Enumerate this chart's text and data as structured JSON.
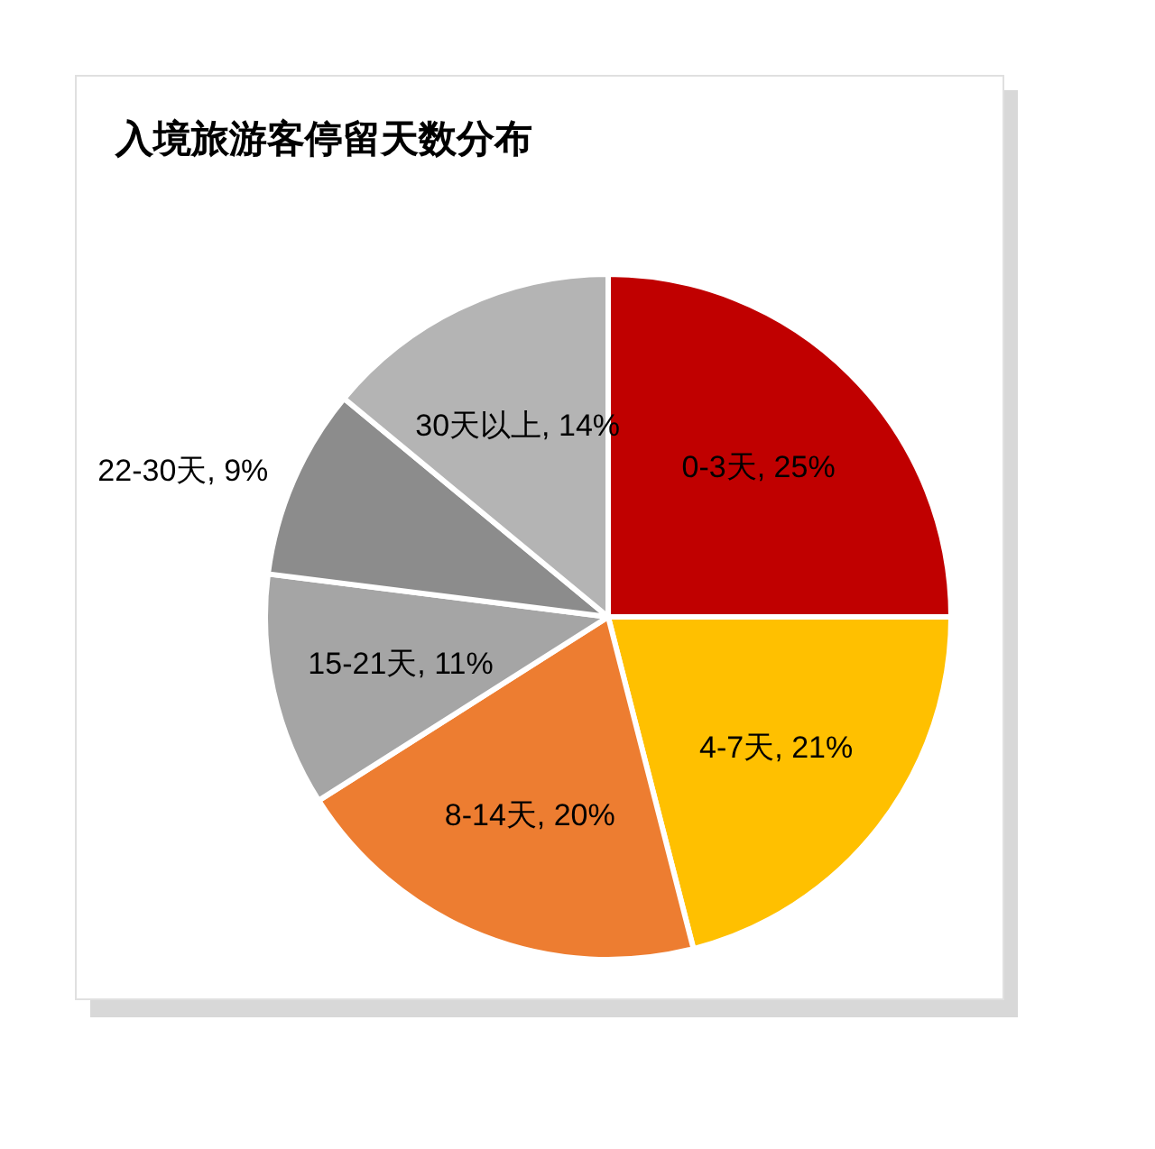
{
  "chart_data": {
    "type": "pie",
    "title": "入境旅游客停留天数分布",
    "categories": [
      "0-3天",
      "4-7天",
      "8-14天",
      "15-21天",
      "22-30天",
      "30天以上"
    ],
    "values": [
      25,
      21,
      20,
      11,
      9,
      14
    ],
    "value_labels": [
      "25%",
      "21%",
      "20%",
      "11%",
      "9%",
      "14%"
    ],
    "colors": [
      "#c00000",
      "#ffc000",
      "#ed7d31",
      "#a5a5a5",
      "#8c8c8c",
      "#b4b4b4"
    ]
  }
}
